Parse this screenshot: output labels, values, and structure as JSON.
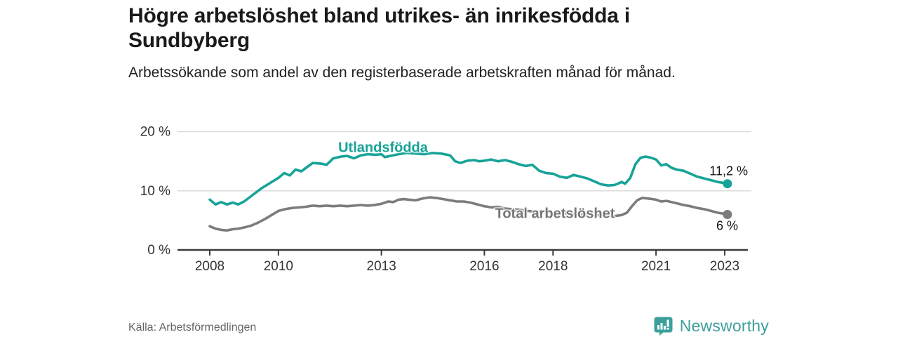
{
  "header": {
    "title": "Högre arbetslöshet bland utrikes- än inrikesfödda i Sundbyberg",
    "subtitle": "Arbetssökande som andel av den registerbaserade arbetskraften månad för månad."
  },
  "footer": {
    "source": "Källa: Arbetsförmedlingen",
    "brand_name": "Newsworthy",
    "brand_color": "#3d9f9b"
  },
  "chart_data": {
    "type": "line",
    "title": "Högre arbetslöshet bland utrikes- än inrikesfödda i Sundbyberg",
    "subtitle": "Arbetssökande som andel av den registerbaserade arbetskraften månad för månad.",
    "xlabel": "",
    "ylabel": "",
    "xlim": [
      2007.1,
      2023.7
    ],
    "ylim": [
      0,
      20
    ],
    "grid": "horizontal",
    "legend_position": "inline-labels",
    "x_ticks": [
      2008,
      2010,
      2013,
      2016,
      2018,
      2021,
      2023
    ],
    "y_ticks": [
      {
        "value": 0,
        "label": "0 %"
      },
      {
        "value": 10,
        "label": "10 %"
      },
      {
        "value": 20,
        "label": "20 %"
      }
    ],
    "colors": {
      "grid": "#d9d9d9",
      "axis": "#3c3c3c",
      "tick_text": "#333333"
    },
    "series": [
      {
        "name": "Utlandsfödda",
        "color": "#17a398",
        "end_label": "11,2 %",
        "end_value": 11.2,
        "points": [
          [
            2008.0,
            8.5
          ],
          [
            2008.17,
            7.7
          ],
          [
            2008.33,
            8.1
          ],
          [
            2008.5,
            7.7
          ],
          [
            2008.67,
            8.0
          ],
          [
            2008.83,
            7.7
          ],
          [
            2009.0,
            8.2
          ],
          [
            2009.25,
            9.3
          ],
          [
            2009.5,
            10.4
          ],
          [
            2009.75,
            11.3
          ],
          [
            2010.0,
            12.2
          ],
          [
            2010.17,
            13.0
          ],
          [
            2010.33,
            12.6
          ],
          [
            2010.5,
            13.6
          ],
          [
            2010.67,
            13.3
          ],
          [
            2010.83,
            14.0
          ],
          [
            2011.0,
            14.7
          ],
          [
            2011.25,
            14.6
          ],
          [
            2011.4,
            14.4
          ],
          [
            2011.6,
            15.5
          ],
          [
            2011.83,
            15.8
          ],
          [
            2012.0,
            15.9
          ],
          [
            2012.2,
            15.5
          ],
          [
            2012.4,
            16.0
          ],
          [
            2012.6,
            16.2
          ],
          [
            2012.83,
            16.1
          ],
          [
            2013.0,
            16.2
          ],
          [
            2013.1,
            15.7
          ],
          [
            2013.25,
            15.9
          ],
          [
            2013.5,
            16.2
          ],
          [
            2013.75,
            16.4
          ],
          [
            2014.0,
            16.3
          ],
          [
            2014.25,
            16.2
          ],
          [
            2014.5,
            16.4
          ],
          [
            2014.75,
            16.3
          ],
          [
            2015.0,
            16.0
          ],
          [
            2015.15,
            15.0
          ],
          [
            2015.3,
            14.7
          ],
          [
            2015.5,
            15.1
          ],
          [
            2015.7,
            15.2
          ],
          [
            2015.85,
            15.0
          ],
          [
            2016.0,
            15.1
          ],
          [
            2016.2,
            15.3
          ],
          [
            2016.4,
            15.0
          ],
          [
            2016.6,
            15.2
          ],
          [
            2016.8,
            14.9
          ],
          [
            2017.0,
            14.5
          ],
          [
            2017.2,
            14.2
          ],
          [
            2017.4,
            14.4
          ],
          [
            2017.6,
            13.4
          ],
          [
            2017.8,
            13.0
          ],
          [
            2018.0,
            12.9
          ],
          [
            2018.2,
            12.4
          ],
          [
            2018.4,
            12.2
          ],
          [
            2018.6,
            12.7
          ],
          [
            2018.8,
            12.4
          ],
          [
            2019.0,
            12.1
          ],
          [
            2019.2,
            11.6
          ],
          [
            2019.4,
            11.1
          ],
          [
            2019.6,
            10.9
          ],
          [
            2019.8,
            11.0
          ],
          [
            2020.0,
            11.5
          ],
          [
            2020.1,
            11.2
          ],
          [
            2020.25,
            12.2
          ],
          [
            2020.4,
            14.5
          ],
          [
            2020.55,
            15.6
          ],
          [
            2020.7,
            15.8
          ],
          [
            2020.85,
            15.6
          ],
          [
            2021.0,
            15.3
          ],
          [
            2021.15,
            14.3
          ],
          [
            2021.3,
            14.5
          ],
          [
            2021.45,
            13.9
          ],
          [
            2021.6,
            13.6
          ],
          [
            2021.8,
            13.4
          ],
          [
            2022.0,
            12.9
          ],
          [
            2022.2,
            12.4
          ],
          [
            2022.4,
            12.1
          ],
          [
            2022.6,
            11.8
          ],
          [
            2022.8,
            11.5
          ],
          [
            2023.0,
            11.3
          ],
          [
            2023.08,
            11.2
          ]
        ]
      },
      {
        "name": "Total arbetslöshet",
        "color": "#7c7c7c",
        "end_label": "6 %",
        "end_value": 6.0,
        "points": [
          [
            2008.0,
            4.0
          ],
          [
            2008.17,
            3.6
          ],
          [
            2008.33,
            3.4
          ],
          [
            2008.5,
            3.3
          ],
          [
            2008.67,
            3.5
          ],
          [
            2008.83,
            3.6
          ],
          [
            2009.0,
            3.8
          ],
          [
            2009.2,
            4.1
          ],
          [
            2009.4,
            4.6
          ],
          [
            2009.6,
            5.2
          ],
          [
            2009.8,
            5.9
          ],
          [
            2010.0,
            6.6
          ],
          [
            2010.2,
            6.9
          ],
          [
            2010.4,
            7.1
          ],
          [
            2010.6,
            7.2
          ],
          [
            2010.8,
            7.3
          ],
          [
            2011.0,
            7.5
          ],
          [
            2011.2,
            7.4
          ],
          [
            2011.4,
            7.5
          ],
          [
            2011.6,
            7.4
          ],
          [
            2011.8,
            7.5
          ],
          [
            2012.0,
            7.4
          ],
          [
            2012.2,
            7.5
          ],
          [
            2012.4,
            7.6
          ],
          [
            2012.6,
            7.5
          ],
          [
            2012.8,
            7.6
          ],
          [
            2013.0,
            7.8
          ],
          [
            2013.2,
            8.2
          ],
          [
            2013.35,
            8.1
          ],
          [
            2013.5,
            8.5
          ],
          [
            2013.65,
            8.6
          ],
          [
            2013.8,
            8.5
          ],
          [
            2014.0,
            8.4
          ],
          [
            2014.2,
            8.7
          ],
          [
            2014.4,
            8.9
          ],
          [
            2014.6,
            8.8
          ],
          [
            2014.8,
            8.6
          ],
          [
            2015.0,
            8.4
          ],
          [
            2015.2,
            8.2
          ],
          [
            2015.4,
            8.2
          ],
          [
            2015.6,
            8.0
          ],
          [
            2015.8,
            7.7
          ],
          [
            2016.0,
            7.4
          ],
          [
            2016.2,
            7.2
          ],
          [
            2016.4,
            7.3
          ],
          [
            2016.6,
            7.0
          ],
          [
            2016.8,
            6.9
          ],
          [
            2017.0,
            6.8
          ],
          [
            2017.25,
            6.6
          ],
          [
            2017.5,
            6.5
          ],
          [
            2017.75,
            6.4
          ],
          [
            2018.0,
            6.3
          ],
          [
            2018.25,
            6.2
          ],
          [
            2018.5,
            6.1
          ],
          [
            2018.75,
            6.0
          ],
          [
            2019.0,
            6.0
          ],
          [
            2019.25,
            5.9
          ],
          [
            2019.5,
            5.8
          ],
          [
            2019.75,
            5.7
          ],
          [
            2020.0,
            5.9
          ],
          [
            2020.15,
            6.3
          ],
          [
            2020.3,
            7.4
          ],
          [
            2020.45,
            8.4
          ],
          [
            2020.6,
            8.8
          ],
          [
            2020.75,
            8.7
          ],
          [
            2020.9,
            8.6
          ],
          [
            2021.0,
            8.5
          ],
          [
            2021.15,
            8.2
          ],
          [
            2021.3,
            8.3
          ],
          [
            2021.45,
            8.1
          ],
          [
            2021.6,
            7.9
          ],
          [
            2021.8,
            7.6
          ],
          [
            2022.0,
            7.4
          ],
          [
            2022.2,
            7.1
          ],
          [
            2022.4,
            6.9
          ],
          [
            2022.6,
            6.6
          ],
          [
            2022.8,
            6.3
          ],
          [
            2023.0,
            6.1
          ],
          [
            2023.08,
            6.0
          ]
        ]
      }
    ]
  }
}
